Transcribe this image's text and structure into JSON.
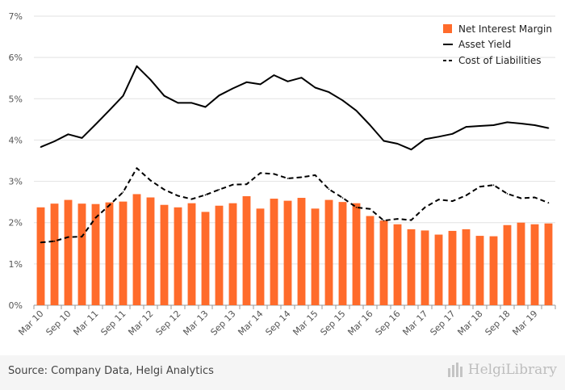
{
  "chart_data": {
    "type": "bar+line",
    "categories": [
      "Mar 10",
      "Jun 10",
      "Sep 10",
      "Dec 10",
      "Mar 11",
      "Jun 11",
      "Sep 11",
      "Dec 11",
      "Mar 12",
      "Jun 12",
      "Sep 12",
      "Dec 12",
      "Mar 13",
      "Jun 13",
      "Sep 13",
      "Dec 13",
      "Mar 14",
      "Jun 14",
      "Sep 14",
      "Dec 14",
      "Mar 15",
      "Jun 15",
      "Sep 15",
      "Dec 15",
      "Mar 16",
      "Jun 16",
      "Sep 16",
      "Dec 16",
      "Mar 17",
      "Jun 17",
      "Sep 17",
      "Dec 17",
      "Mar 18",
      "Jun 18",
      "Sep 18",
      "Dec 18",
      "Mar 19",
      "Jun 19"
    ],
    "x_tick_labels": [
      "Mar 10",
      "Sep 10",
      "Mar 11",
      "Sep 11",
      "Mar 12",
      "Sep 12",
      "Mar 13",
      "Sep 13",
      "Mar 14",
      "Sep 14",
      "Mar 15",
      "Sep 15",
      "Mar 16",
      "Sep 16",
      "Mar 17",
      "Sep 17",
      "Mar 18",
      "Sep 18",
      "Mar 19"
    ],
    "y_tick_labels": [
      "0%",
      "1%",
      "2%",
      "3%",
      "4%",
      "5%",
      "6%",
      "7%"
    ],
    "ylim": [
      0,
      7
    ],
    "grid": true,
    "legend_position": "top-right",
    "series": [
      {
        "name": "Net Interest Margin",
        "kind": "bar",
        "color": "#ff6b2b",
        "values": [
          2.37,
          2.46,
          2.55,
          2.46,
          2.45,
          2.49,
          2.51,
          2.69,
          2.61,
          2.43,
          2.37,
          2.47,
          2.26,
          2.41,
          2.47,
          2.64,
          2.34,
          2.58,
          2.53,
          2.6,
          2.34,
          2.55,
          2.5,
          2.47,
          2.16,
          2.05,
          1.96,
          1.84,
          1.81,
          1.71,
          1.8,
          1.84,
          1.68,
          1.67,
          1.94,
          2.0,
          1.96,
          1.98
        ]
      },
      {
        "name": "Asset Yield",
        "kind": "line",
        "style": "solid",
        "color": "#000000",
        "values": [
          3.83,
          3.97,
          4.14,
          4.05,
          4.38,
          4.72,
          5.07,
          5.79,
          5.46,
          5.07,
          4.9,
          4.9,
          4.8,
          5.08,
          5.25,
          5.4,
          5.35,
          5.57,
          5.42,
          5.51,
          5.27,
          5.16,
          4.96,
          4.71,
          4.36,
          3.98,
          3.91,
          3.77,
          4.02,
          4.08,
          4.15,
          4.32,
          4.34,
          4.36,
          4.43,
          4.4,
          4.36,
          4.29
        ]
      },
      {
        "name": "Cost of Liabilities",
        "kind": "line",
        "style": "dashed",
        "color": "#000000",
        "values": [
          1.52,
          1.55,
          1.65,
          1.66,
          2.12,
          2.42,
          2.74,
          3.32,
          3.02,
          2.8,
          2.65,
          2.57,
          2.67,
          2.8,
          2.92,
          2.93,
          3.2,
          3.18,
          3.07,
          3.1,
          3.15,
          2.81,
          2.6,
          2.37,
          2.33,
          2.05,
          2.09,
          2.06,
          2.37,
          2.56,
          2.52,
          2.66,
          2.87,
          2.91,
          2.7,
          2.59,
          2.61,
          2.48
        ]
      }
    ]
  },
  "footer": {
    "source": "Source: Company Data, Helgi Analytics",
    "logo_text": "HelgiLibrary"
  }
}
